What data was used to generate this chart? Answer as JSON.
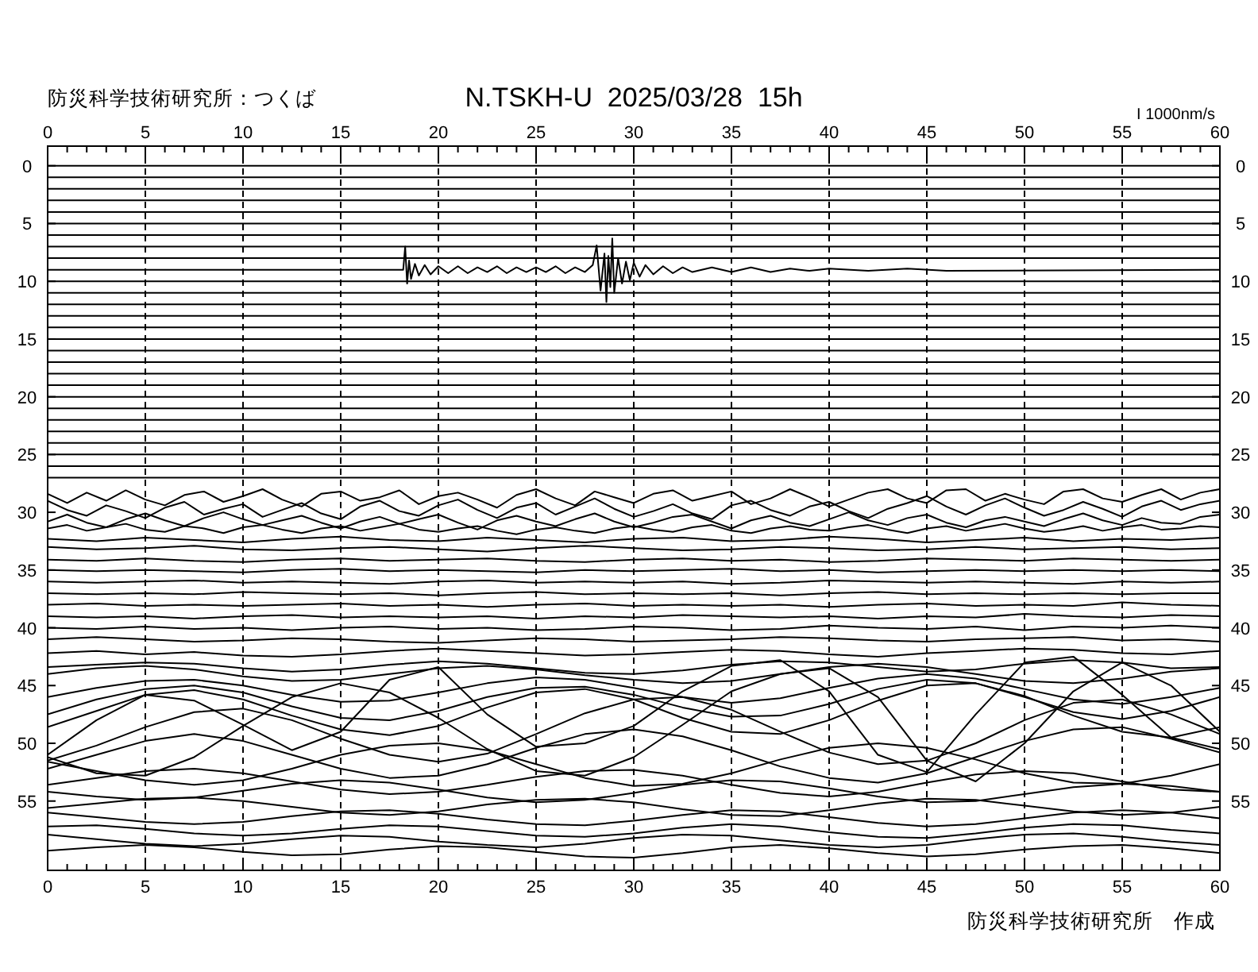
{
  "chart_data": {
    "type": "line",
    "title": "N.TSKH-U  2025/03/28  15h",
    "annotations": [
      "防災科学技術研究所：つくば",
      "I 1000nm/s",
      "防災科学技術研究所　作成"
    ],
    "xlim": [
      0,
      60
    ],
    "ylim": [
      61,
      -1.7
    ],
    "x2lim": [
      0,
      60
    ],
    "y2lim": [
      61,
      -1.7
    ],
    "xticks": [
      0,
      {
        "value": 1,
        "label": null
      },
      {
        "value": 2,
        "label": null
      },
      {
        "value": 3,
        "label": null
      },
      {
        "value": 4,
        "label": null
      },
      5,
      {
        "value": 6,
        "label": null
      },
      {
        "value": 7,
        "label": null
      },
      {
        "value": 8,
        "label": null
      },
      {
        "value": 9,
        "label": null
      },
      10,
      {
        "value": 11,
        "label": null
      },
      {
        "value": 12,
        "label": null
      },
      {
        "value": 13,
        "label": null
      },
      {
        "value": 14,
        "label": null
      },
      15,
      {
        "value": 16,
        "label": null
      },
      {
        "value": 17,
        "label": null
      },
      {
        "value": 18,
        "label": null
      },
      {
        "value": 19,
        "label": null
      },
      20,
      {
        "value": 21,
        "label": null
      },
      {
        "value": 22,
        "label": null
      },
      {
        "value": 23,
        "label": null
      },
      {
        "value": 24,
        "label": null
      },
      25,
      {
        "value": 26,
        "label": null
      },
      {
        "value": 27,
        "label": null
      },
      {
        "value": 28,
        "label": null
      },
      {
        "value": 29,
        "label": null
      },
      30,
      {
        "value": 31,
        "label": null
      },
      {
        "value": 32,
        "label": null
      },
      {
        "value": 33,
        "label": null
      },
      {
        "value": 34,
        "label": null
      },
      35,
      {
        "value": 36,
        "label": null
      },
      {
        "value": 37,
        "label": null
      },
      {
        "value": 38,
        "label": null
      },
      {
        "value": 39,
        "label": null
      },
      40,
      {
        "value": 41,
        "label": null
      },
      {
        "value": 42,
        "label": null
      },
      {
        "value": 43,
        "label": null
      },
      {
        "value": 44,
        "label": null
      },
      45,
      {
        "value": 46,
        "label": null
      },
      {
        "value": 47,
        "label": null
      },
      {
        "value": 48,
        "label": null
      },
      {
        "value": 49,
        "label": null
      },
      50,
      {
        "value": 51,
        "label": null
      },
      {
        "value": 52,
        "label": null
      },
      {
        "value": 53,
        "label": null
      },
      {
        "value": 54,
        "label": null
      },
      55,
      {
        "value": 56,
        "label": null
      },
      {
        "value": 57,
        "label": null
      },
      {
        "value": 58,
        "label": null
      },
      {
        "value": 59,
        "label": null
      },
      60
    ],
    "x2ticks": [
      0,
      {
        "value": 1,
        "label": null
      },
      {
        "value": 2,
        "label": null
      },
      {
        "value": 3,
        "label": null
      },
      {
        "value": 4,
        "label": null
      },
      5,
      {
        "value": 6,
        "label": null
      },
      {
        "value": 7,
        "label": null
      },
      {
        "value": 8,
        "label": null
      },
      {
        "value": 9,
        "label": null
      },
      10,
      {
        "value": 11,
        "label": null
      },
      {
        "value": 12,
        "label": null
      },
      {
        "value": 13,
        "label": null
      },
      {
        "value": 14,
        "label": null
      },
      15,
      {
        "value": 16,
        "label": null
      },
      {
        "value": 17,
        "label": null
      },
      {
        "value": 18,
        "label": null
      },
      {
        "value": 19,
        "label": null
      },
      20,
      {
        "value": 21,
        "label": null
      },
      {
        "value": 22,
        "label": null
      },
      {
        "value": 23,
        "label": null
      },
      {
        "value": 24,
        "label": null
      },
      25,
      {
        "value": 26,
        "label": null
      },
      {
        "value": 27,
        "label": null
      },
      {
        "value": 28,
        "label": null
      },
      {
        "value": 29,
        "label": null
      },
      30,
      {
        "value": 31,
        "label": null
      },
      {
        "value": 32,
        "label": null
      },
      {
        "value": 33,
        "label": null
      },
      {
        "value": 34,
        "label": null
      },
      35,
      {
        "value": 36,
        "label": null
      },
      {
        "value": 37,
        "label": null
      },
      {
        "value": 38,
        "label": null
      },
      {
        "value": 39,
        "label": null
      },
      40,
      {
        "value": 41,
        "label": null
      },
      {
        "value": 42,
        "label": null
      },
      {
        "value": 43,
        "label": null
      },
      {
        "value": 44,
        "label": null
      },
      45,
      {
        "value": 46,
        "label": null
      },
      {
        "value": 47,
        "label": null
      },
      {
        "value": 48,
        "label": null
      },
      {
        "value": 49,
        "label": null
      },
      50,
      {
        "value": 51,
        "label": null
      },
      {
        "value": 52,
        "label": null
      },
      {
        "value": 53,
        "label": null
      },
      {
        "value": 54,
        "label": null
      },
      55,
      {
        "value": 56,
        "label": null
      },
      {
        "value": 57,
        "label": null
      },
      {
        "value": 58,
        "label": null
      },
      {
        "value": 59,
        "label": null
      },
      60
    ],
    "yticks": [
      0,
      5,
      10,
      15,
      20,
      25,
      30,
      35,
      40,
      45,
      50,
      55
    ],
    "y2ticks": [
      0,
      5,
      10,
      15,
      20,
      25,
      30,
      35,
      40,
      45,
      50,
      55
    ],
    "grid": "x",
    "x": [
      0,
      2.5,
      5,
      7.5,
      10,
      12.5,
      15,
      17.5,
      20,
      22.5,
      25,
      27.5,
      30,
      32.5,
      35,
      37.5,
      40,
      42.5,
      45,
      47.5,
      50,
      52.5,
      55,
      57.5,
      60
    ],
    "series": [
      {
        "color": "#000000",
        "x": [
          0,
          60
        ],
        "values": [
          0,
          0
        ]
      },
      {
        "color": "#000000",
        "x": [
          0,
          60
        ],
        "values": [
          1,
          1
        ]
      },
      {
        "color": "#000000",
        "x": [
          0,
          60
        ],
        "values": [
          2,
          2
        ]
      },
      {
        "color": "#000000",
        "x": [
          0,
          60
        ],
        "values": [
          3,
          3
        ]
      },
      {
        "color": "#000000",
        "x": [
          0,
          60
        ],
        "values": [
          4,
          4
        ]
      },
      {
        "color": "#000000",
        "x": [
          0,
          60
        ],
        "values": [
          5,
          5
        ]
      },
      {
        "color": "#000000",
        "x": [
          0,
          60
        ],
        "values": [
          6,
          6
        ]
      },
      {
        "color": "#000000",
        "x": [
          0,
          60
        ],
        "values": [
          7,
          7
        ]
      },
      {
        "color": "#000000",
        "x": [
          0,
          60
        ],
        "values": [
          8,
          8
        ]
      },
      {
        "color": "#000000",
        "x": [
          0,
          18.2,
          18.3,
          18.4,
          18.5,
          18.6,
          18.8,
          19.0,
          19.3,
          19.6,
          20,
          20.5,
          21,
          21.5,
          22,
          22.5,
          23,
          23.5,
          24,
          24.5,
          25,
          25.5,
          26,
          26.5,
          27,
          27.5,
          27.9,
          28.1,
          28.3,
          28.5,
          28.6,
          28.7,
          28.8,
          28.9,
          29.0,
          29.2,
          29.4,
          29.6,
          29.8,
          30.0,
          30.3,
          30.6,
          31,
          31.5,
          32,
          32.5,
          33,
          34,
          35,
          36,
          37,
          38,
          39,
          40,
          42,
          44,
          46,
          60
        ],
        "values": [
          9,
          9,
          7.0,
          10.2,
          8.2,
          9.8,
          8.5,
          9.5,
          8.6,
          9.4,
          8.7,
          9.3,
          8.7,
          9.3,
          8.8,
          9.2,
          8.7,
          9.3,
          8.8,
          9.2,
          8.8,
          9.2,
          8.7,
          9.3,
          8.8,
          9.2,
          8.6,
          6.9,
          10.8,
          7.6,
          11.8,
          7.8,
          10.5,
          6.3,
          11.0,
          8.0,
          10.2,
          8.3,
          9.9,
          8.4,
          9.6,
          8.6,
          9.4,
          8.7,
          9.3,
          8.8,
          9.2,
          8.8,
          9.2,
          8.8,
          9.2,
          8.9,
          9.1,
          8.9,
          9.1,
          8.9,
          9.1,
          9
        ]
      },
      {
        "color": "#000000",
        "x": [
          0,
          60
        ],
        "values": [
          10,
          10
        ]
      },
      {
        "color": "#000000",
        "x": [
          0,
          60
        ],
        "values": [
          11,
          11
        ]
      },
      {
        "color": "#000000",
        "x": [
          0,
          60
        ],
        "values": [
          12,
          12
        ]
      },
      {
        "color": "#000000",
        "x": [
          0,
          60
        ],
        "values": [
          13,
          13
        ]
      },
      {
        "color": "#000000",
        "x": [
          0,
          60
        ],
        "values": [
          14,
          14
        ]
      },
      {
        "color": "#000000",
        "x": [
          0,
          60
        ],
        "values": [
          15,
          15
        ]
      },
      {
        "color": "#000000",
        "x": [
          0,
          60
        ],
        "values": [
          16,
          16
        ]
      },
      {
        "color": "#000000",
        "x": [
          0,
          60
        ],
        "values": [
          17,
          17
        ]
      },
      {
        "color": "#000000",
        "x": [
          0,
          60
        ],
        "values": [
          18,
          18
        ]
      },
      {
        "color": "#000000",
        "x": [
          0,
          60
        ],
        "values": [
          19,
          19
        ]
      },
      {
        "color": "#000000",
        "x": [
          0,
          60
        ],
        "values": [
          20,
          20
        ]
      },
      {
        "color": "#000000",
        "x": [
          0,
          60
        ],
        "values": [
          21,
          21
        ]
      },
      {
        "color": "#000000",
        "x": [
          0,
          60
        ],
        "values": [
          22,
          22
        ]
      },
      {
        "color": "#000000",
        "x": [
          0,
          60
        ],
        "values": [
          23,
          23
        ]
      },
      {
        "color": "#000000",
        "x": [
          0,
          60
        ],
        "values": [
          24,
          24
        ]
      },
      {
        "color": "#000000",
        "x": [
          0,
          60
        ],
        "values": [
          25,
          25
        ]
      },
      {
        "color": "#000000",
        "x": [
          0,
          60
        ],
        "values": [
          26,
          26
        ]
      },
      {
        "color": "#000000",
        "x": [
          0,
          60
        ],
        "values": [
          27,
          27
        ]
      },
      {
        "color": "#000000",
        "x": [
          0,
          1,
          2,
          3,
          4,
          5,
          6,
          7,
          8,
          9,
          10,
          11,
          12,
          13,
          14,
          15,
          16,
          17,
          18,
          19,
          20,
          21,
          22,
          23,
          24,
          25,
          26,
          27,
          28,
          29,
          30,
          31,
          32,
          33,
          34,
          35,
          36,
          37,
          38,
          39,
          40,
          41,
          42,
          43,
          44,
          45,
          46,
          47,
          48,
          49,
          50,
          51,
          52,
          53,
          54,
          55,
          56,
          57,
          58,
          59,
          60
        ],
        "values": [
          28.4,
          29.2,
          28.3,
          29.0,
          28.1,
          28.9,
          29.4,
          28.5,
          28.2,
          29.1,
          28.6,
          28.0,
          28.9,
          29.5,
          28.4,
          28.2,
          29.0,
          28.7,
          28.1,
          29.3,
          28.6,
          28.3,
          28.9,
          29.6,
          28.5,
          28.0,
          28.8,
          29.4,
          28.2,
          28.7,
          29.2,
          28.4,
          28.1,
          29.0,
          28.6,
          28.2,
          29.3,
          28.8,
          28.0,
          28.7,
          29.5,
          28.9,
          28.3,
          28.0,
          28.8,
          29.2,
          28.1,
          28.0,
          29.0,
          28.4,
          28.9,
          29.3,
          28.2,
          28.0,
          28.8,
          29.1,
          28.5,
          28.0,
          28.9,
          28.3,
          28.0
        ]
      },
      {
        "color": "#000000",
        "x": [
          0,
          1,
          2,
          3,
          4,
          5,
          6,
          7,
          8,
          9,
          10,
          11,
          12,
          13,
          14,
          15,
          16,
          17,
          18,
          19,
          20,
          21,
          22,
          23,
          24,
          25,
          26,
          27,
          28,
          29,
          30,
          31,
          32,
          33,
          34,
          35,
          36,
          37,
          38,
          39,
          40,
          41,
          42,
          43,
          44,
          45,
          46,
          47,
          48,
          49,
          50,
          51,
          52,
          53,
          54,
          55,
          56,
          57,
          58,
          59,
          60
        ],
        "values": [
          29.0,
          29.8,
          30.3,
          29.4,
          29.9,
          30.5,
          29.6,
          29.1,
          30.2,
          29.7,
          29.3,
          30.4,
          29.8,
          29.2,
          30.1,
          30.6,
          29.5,
          29.0,
          29.9,
          30.3,
          29.4,
          28.9,
          29.8,
          30.5,
          29.6,
          29.2,
          30.2,
          29.5,
          28.8,
          29.7,
          30.4,
          29.9,
          29.3,
          30.1,
          30.6,
          29.4,
          29.0,
          29.8,
          30.3,
          29.5,
          29.1,
          29.9,
          30.5,
          29.7,
          29.2,
          28.6,
          29.5,
          30.2,
          29.4,
          28.8,
          29.6,
          30.3,
          29.8,
          29.1,
          29.7,
          30.4,
          29.5,
          29.0,
          29.8,
          29.3,
          29.0
        ]
      },
      {
        "color": "#000000",
        "x": [
          0,
          1,
          2,
          3,
          4,
          5,
          6,
          7,
          8,
          9,
          10,
          11,
          12,
          13,
          14,
          15,
          16,
          17,
          18,
          19,
          20,
          21,
          22,
          23,
          24,
          25,
          26,
          27,
          28,
          29,
          30,
          31,
          32,
          33,
          34,
          35,
          36,
          37,
          38,
          39,
          40,
          41,
          42,
          43,
          44,
          45,
          46,
          47,
          48,
          49,
          50,
          51,
          52,
          53,
          54,
          55,
          56,
          57,
          58,
          59,
          60
        ],
        "values": [
          30.8,
          30.2,
          30.9,
          31.3,
          30.6,
          30.1,
          30.7,
          31.2,
          30.5,
          30.0,
          30.6,
          31.1,
          30.7,
          30.3,
          30.9,
          31.4,
          30.8,
          30.4,
          31.0,
          30.6,
          30.2,
          30.9,
          31.5,
          30.7,
          30.3,
          30.8,
          31.2,
          30.6,
          30.1,
          30.8,
          31.3,
          30.9,
          30.4,
          30.2,
          30.8,
          31.4,
          30.7,
          30.3,
          30.9,
          31.2,
          30.6,
          30.0,
          30.7,
          31.1,
          30.5,
          30.2,
          30.9,
          31.3,
          30.7,
          30.4,
          30.8,
          31.2,
          30.6,
          30.1,
          30.7,
          31.1,
          30.5,
          30.9,
          31.0,
          30.4,
          30.2
        ]
      },
      {
        "color": "#000000",
        "x": [
          0,
          1,
          2,
          3,
          4,
          5,
          6,
          7,
          8,
          9,
          10,
          11,
          12,
          13,
          14,
          15,
          16,
          17,
          18,
          19,
          20,
          21,
          22,
          23,
          24,
          25,
          26,
          27,
          28,
          29,
          30,
          31,
          32,
          33,
          34,
          35,
          36,
          37,
          38,
          39,
          40,
          41,
          42,
          43,
          44,
          45,
          46,
          47,
          48,
          49,
          50,
          51,
          52,
          53,
          54,
          55,
          56,
          57,
          58,
          59,
          60
        ],
        "values": [
          31.4,
          31.1,
          31.6,
          31.3,
          31.0,
          31.5,
          31.7,
          31.2,
          31.4,
          31.8,
          31.3,
          31.1,
          31.5,
          31.8,
          31.4,
          31.2,
          31.6,
          31.3,
          31.0,
          31.5,
          31.7,
          31.4,
          31.2,
          31.6,
          31.9,
          31.5,
          31.3,
          31.6,
          31.8,
          31.4,
          31.2,
          31.5,
          31.7,
          31.3,
          31.1,
          31.6,
          31.8,
          31.4,
          31.2,
          31.5,
          31.6,
          31.3,
          31.1,
          31.5,
          31.8,
          31.4,
          31.2,
          31.6,
          31.3,
          31.0,
          31.4,
          31.7,
          31.5,
          31.2,
          31.6,
          31.3,
          31.1,
          31.5,
          31.4,
          31.2,
          31.3
        ]
      },
      {
        "color": "#000000",
        "values": [
          32.3,
          32.5,
          32.2,
          32.4,
          32.6,
          32.3,
          32.1,
          32.4,
          32.5,
          32.2,
          32.4,
          32.6,
          32.3,
          32.2,
          32.5,
          32.4,
          32.1,
          32.3,
          32.6,
          32.4,
          32.2,
          32.5,
          32.3,
          32.4,
          32.2
        ]
      },
      {
        "color": "#000000",
        "values": [
          33.0,
          33.2,
          33.1,
          32.9,
          33.2,
          33.3,
          33.1,
          33.0,
          33.2,
          33.4,
          33.1,
          32.9,
          33.1,
          33.3,
          33.2,
          33.0,
          33.1,
          33.3,
          33.2,
          33.0,
          33.2,
          33.1,
          33.0,
          33.2,
          33.1
        ]
      },
      {
        "color": "#000000",
        "values": [
          34.1,
          34.2,
          34.0,
          34.2,
          34.3,
          34.1,
          34.0,
          34.2,
          34.1,
          34.0,
          34.2,
          34.3,
          34.1,
          34.0,
          34.2,
          34.1,
          34.3,
          34.2,
          34.0,
          34.1,
          34.2,
          34.0,
          34.1,
          34.2,
          34.1
        ]
      },
      {
        "color": "#000000",
        "values": [
          35.0,
          35.1,
          35.0,
          35.1,
          35.2,
          35.0,
          34.9,
          35.1,
          35.0,
          35.1,
          35.2,
          35.0,
          35.1,
          35.0,
          34.9,
          35.1,
          35.0,
          35.2,
          35.1,
          35.0,
          35.1,
          35.0,
          35.1,
          35.0,
          35.1
        ]
      },
      {
        "color": "#000000",
        "values": [
          36.0,
          36.1,
          36.0,
          35.9,
          36.1,
          36.0,
          36.1,
          36.2,
          36.0,
          35.9,
          36.1,
          36.0,
          36.1,
          36.0,
          36.2,
          36.1,
          35.9,
          36.0,
          36.1,
          36.0,
          36.1,
          36.2,
          36.0,
          36.1,
          36.0
        ]
      },
      {
        "color": "#000000",
        "values": [
          37.0,
          37.1,
          37.0,
          37.1,
          36.9,
          37.0,
          37.1,
          37.0,
          37.2,
          37.0,
          36.9,
          37.1,
          37.0,
          37.1,
          37.0,
          37.2,
          37.0,
          36.9,
          37.1,
          37.0,
          37.1,
          37.0,
          37.1,
          37.0,
          37.0
        ]
      },
      {
        "color": "#000000",
        "values": [
          38.0,
          37.9,
          38.1,
          38.0,
          38.1,
          38.0,
          37.9,
          38.1,
          38.0,
          38.2,
          38.0,
          37.9,
          38.1,
          38.0,
          38.1,
          38.0,
          38.2,
          38.0,
          37.9,
          38.1,
          38.0,
          38.1,
          37.8,
          38.0,
          38.1
        ]
      },
      {
        "color": "#000000",
        "values": [
          39.0,
          39.1,
          39.0,
          39.2,
          39.0,
          38.9,
          39.1,
          39.0,
          39.1,
          39.0,
          39.2,
          39.0,
          39.1,
          38.9,
          39.0,
          39.1,
          39.0,
          39.2,
          39.0,
          39.1,
          38.8,
          39.0,
          39.1,
          38.9,
          39.0
        ]
      },
      {
        "color": "#000000",
        "values": [
          40.0,
          40.1,
          39.9,
          40.1,
          40.0,
          40.2,
          40.0,
          39.9,
          40.1,
          40.0,
          40.2,
          40.1,
          39.9,
          40.0,
          40.2,
          40.1,
          39.8,
          40.0,
          40.1,
          39.9,
          40.2,
          39.9,
          40.0,
          39.8,
          40.0
        ]
      },
      {
        "color": "#000000",
        "values": [
          41.0,
          40.8,
          41.0,
          41.2,
          41.1,
          40.9,
          41.0,
          41.2,
          41.3,
          41.1,
          40.9,
          41.0,
          41.2,
          41.1,
          41.0,
          40.8,
          40.9,
          41.1,
          41.2,
          41.0,
          40.9,
          40.8,
          41.1,
          41.0,
          41.2
        ]
      },
      {
        "color": "#000000",
        "values": [
          42.2,
          42.0,
          42.3,
          42.1,
          42.4,
          42.5,
          42.3,
          42.0,
          41.8,
          42.0,
          42.2,
          42.4,
          42.3,
          42.1,
          41.9,
          42.0,
          42.3,
          42.5,
          42.2,
          42.0,
          41.8,
          41.9,
          42.2,
          42.3,
          42.0
        ]
      },
      {
        "color": "#000000",
        "values": [
          43.4,
          43.2,
          43.0,
          43.1,
          43.5,
          43.8,
          43.6,
          43.2,
          42.9,
          43.1,
          43.5,
          43.9,
          44.0,
          43.7,
          43.2,
          42.9,
          43.0,
          43.4,
          43.8,
          43.6,
          43.1,
          42.8,
          43.0,
          43.5,
          43.4
        ]
      },
      {
        "color": "#000000",
        "values": [
          44.0,
          43.5,
          43.3,
          43.6,
          44.2,
          44.6,
          44.5,
          44.0,
          43.5,
          43.3,
          43.6,
          44.1,
          44.5,
          44.8,
          44.6,
          44.0,
          43.4,
          43.1,
          43.4,
          44.0,
          44.6,
          44.8,
          44.4,
          43.8,
          43.5
        ]
      },
      {
        "color": "#000000",
        "values": [
          46.0,
          45.2,
          44.6,
          44.5,
          45.0,
          45.8,
          46.4,
          46.3,
          45.6,
          44.8,
          44.3,
          44.5,
          45.2,
          46.0,
          46.5,
          46.1,
          45.2,
          44.4,
          44.0,
          44.4,
          45.3,
          46.2,
          46.6,
          46.0,
          45.2
        ]
      },
      {
        "color": "#000000",
        "values": [
          47.5,
          46.2,
          45.3,
          45.0,
          45.6,
          46.8,
          47.8,
          48.0,
          47.2,
          46.0,
          45.2,
          45.1,
          45.8,
          46.9,
          47.7,
          47.6,
          46.6,
          45.3,
          44.5,
          44.8,
          46.0,
          47.3,
          47.9,
          47.2,
          46.0
        ]
      },
      {
        "color": "#000000",
        "values": [
          48.6,
          47.2,
          45.8,
          45.4,
          46.2,
          47.6,
          48.8,
          49.3,
          48.5,
          46.9,
          45.6,
          45.3,
          46.2,
          47.8,
          49.0,
          49.2,
          48.0,
          46.3,
          45.0,
          44.8,
          45.9,
          47.6,
          49.0,
          49.5,
          48.6
        ]
      },
      {
        "color": "#000000",
        "values": [
          51.0,
          48.0,
          45.8,
          46.3,
          48.4,
          50.6,
          49.0,
          44.5,
          43.4,
          47.5,
          50.3,
          50.0,
          48.5,
          45.5,
          43.3,
          42.8,
          45.5,
          51.0,
          52.5,
          47.5,
          43.0,
          42.5,
          45.8,
          49.5,
          50.5
        ]
      },
      {
        "color": "#000000",
        "values": [
          51.5,
          50.2,
          48.6,
          47.3,
          47.0,
          48.0,
          49.6,
          51.0,
          51.6,
          50.9,
          49.2,
          47.4,
          46.2,
          46.0,
          47.1,
          49.0,
          50.8,
          51.8,
          51.5,
          50.0,
          48.0,
          46.5,
          46.2,
          47.5,
          49.2
        ]
      },
      {
        "color": "#000000",
        "values": [
          51.2,
          52.6,
          52.8,
          51.2,
          48.5,
          46.0,
          44.8,
          45.6,
          47.8,
          50.5,
          52.4,
          52.8,
          51.2,
          48.4,
          45.5,
          44.0,
          43.5,
          46.0,
          51.5,
          53.3,
          50.0,
          45.5,
          43.0,
          45.0,
          49.0
        ]
      },
      {
        "color": "#000000",
        "values": [
          52.2,
          51.0,
          49.8,
          49.2,
          49.8,
          51.0,
          52.2,
          53.0,
          52.8,
          51.8,
          50.4,
          49.2,
          48.8,
          49.4,
          50.6,
          52.0,
          53.0,
          53.4,
          52.6,
          51.2,
          49.8,
          48.8,
          48.6,
          49.6,
          50.8
        ]
      },
      {
        "color": "#000000",
        "values": [
          51.6,
          52.4,
          53.2,
          53.6,
          53.2,
          52.2,
          51.0,
          50.2,
          50.0,
          50.6,
          51.8,
          53.0,
          53.7,
          53.5,
          52.6,
          51.4,
          50.4,
          50.0,
          50.4,
          51.4,
          52.6,
          53.4,
          53.5,
          52.8,
          51.8
        ]
      },
      {
        "color": "#000000",
        "values": [
          53.6,
          53.0,
          52.4,
          52.2,
          52.6,
          53.3,
          54.0,
          54.4,
          54.2,
          53.6,
          52.9,
          52.4,
          52.3,
          52.8,
          53.6,
          54.3,
          54.6,
          54.2,
          53.4,
          52.7,
          52.4,
          52.6,
          53.3,
          54.0,
          54.2
        ]
      },
      {
        "color": "#000000",
        "values": [
          54.2,
          54.6,
          54.9,
          54.7,
          54.1,
          53.5,
          53.2,
          53.4,
          54.0,
          54.7,
          55.1,
          54.9,
          54.3,
          53.6,
          53.2,
          53.3,
          53.9,
          54.6,
          55.1,
          55.0,
          54.4,
          53.8,
          53.5,
          53.7,
          54.2
        ]
      },
      {
        "color": "#000000",
        "values": [
          55.6,
          55.2,
          54.8,
          54.7,
          55.0,
          55.5,
          56.0,
          56.2,
          55.9,
          55.3,
          54.9,
          54.8,
          55.1,
          55.7,
          56.2,
          56.3,
          55.8,
          55.2,
          54.8,
          54.9,
          55.4,
          55.9,
          56.2,
          56.0,
          55.5
        ]
      },
      {
        "color": "#000000",
        "values": [
          56.0,
          56.4,
          56.8,
          57.0,
          56.8,
          56.3,
          55.9,
          55.8,
          56.1,
          56.6,
          57.0,
          57.1,
          56.7,
          56.2,
          55.8,
          55.9,
          56.4,
          56.9,
          57.2,
          57.0,
          56.5,
          56.0,
          55.8,
          56.0,
          56.5
        ]
      },
      {
        "color": "#000000",
        "values": [
          57.2,
          57.1,
          57.4,
          57.8,
          58.0,
          57.8,
          57.4,
          57.1,
          57.2,
          57.6,
          58.0,
          58.1,
          57.8,
          57.3,
          57.0,
          57.2,
          57.7,
          58.1,
          58.2,
          57.8,
          57.3,
          57.0,
          57.1,
          57.5,
          57.8
        ]
      },
      {
        "color": "#000000",
        "values": [
          57.9,
          58.3,
          58.7,
          58.9,
          58.7,
          58.3,
          58.0,
          58.1,
          58.5,
          58.8,
          59.0,
          58.7,
          58.2,
          57.9,
          58.0,
          58.4,
          58.8,
          59.0,
          58.8,
          58.3,
          57.9,
          57.8,
          58.1,
          58.5,
          58.8
        ]
      },
      {
        "color": "#000000",
        "values": [
          59.3,
          59.0,
          58.8,
          59.0,
          59.4,
          59.7,
          59.6,
          59.2,
          58.9,
          59.0,
          59.4,
          59.8,
          59.9,
          59.5,
          59.0,
          58.8,
          59.1,
          59.5,
          59.8,
          59.6,
          59.2,
          58.9,
          58.8,
          59.1,
          59.5
        ]
      }
    ]
  }
}
